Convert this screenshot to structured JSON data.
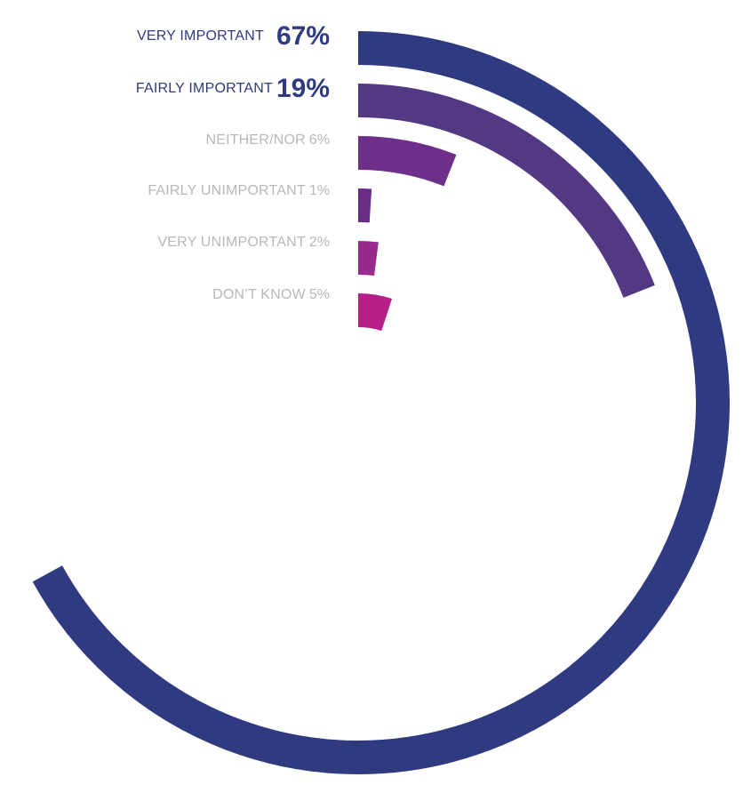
{
  "chart_data": {
    "type": "radial-bar",
    "max": 100,
    "items": [
      {
        "label": "VERY IMPORTANT",
        "value_label": "67%",
        "value": 67,
        "color": "#2f3a80",
        "emphasis": true
      },
      {
        "label": "FAIRLY IMPORTANT",
        "value_label": "19%",
        "value": 19,
        "color": "#533884",
        "emphasis": true
      },
      {
        "label": "NEITHER/NOR",
        "value_label": "6%",
        "value": 6,
        "color": "#6e2f8a",
        "emphasis": false
      },
      {
        "label": "FAIRLY UNIMPORTANT",
        "value_label": "1%",
        "value": 1,
        "color": "#6a2c84",
        "emphasis": false
      },
      {
        "label": "VERY UNIMPORTANT",
        "value_label": "2%",
        "value": 2,
        "color": "#972a8c",
        "emphasis": false
      },
      {
        "label": "DON’T KNOW",
        "value_label": "5%",
        "value": 5,
        "color": "#b51f87",
        "emphasis": false
      }
    ]
  }
}
